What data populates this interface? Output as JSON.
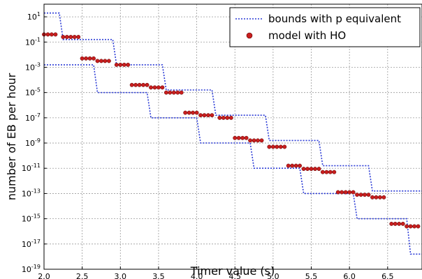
{
  "chart_data": {
    "type": "line",
    "xlabel": "Timer value (s)",
    "ylabel": "number of EB per hour",
    "xlim": [
      2.0,
      6.95
    ],
    "ylim_log10": [
      -19,
      2
    ],
    "y_scale": "log",
    "grid": true,
    "legend_position": "top-right",
    "x_ticks": [
      "2.0",
      "2.5",
      "3.0",
      "3.5",
      "4.0",
      "4.5",
      "5.0",
      "5.5",
      "6.0",
      "6.5"
    ],
    "x_tick_values": [
      2.0,
      2.5,
      3.0,
      3.5,
      4.0,
      4.5,
      5.0,
      5.5,
      6.0,
      6.5
    ],
    "y_tick_base": "10",
    "y_tick_exponents": [
      "1",
      "-1",
      "-3",
      "-5",
      "-7",
      "-9",
      "-11",
      "-13",
      "-15",
      "-17",
      "-19"
    ],
    "series": [
      {
        "name": "bounds with p equivalent",
        "style": "dotted-line",
        "color": "#2b3bd6",
        "step_lines": [
          {
            "x": [
              2.0,
              2.2,
              2.25,
              2.9,
              2.95,
              3.55,
              3.6,
              4.2,
              4.25,
              4.9,
              4.95,
              5.6,
              5.65,
              6.25,
              6.3,
              6.95
            ],
            "log10_y": [
              1.3,
              1.3,
              -0.8,
              -0.8,
              -2.8,
              -2.8,
              -4.8,
              -4.8,
              -6.8,
              -6.8,
              -8.8,
              -8.8,
              -10.8,
              -10.8,
              -12.8,
              -12.8
            ]
          },
          {
            "x": [
              2.0,
              2.65,
              2.7,
              3.35,
              3.4,
              4.0,
              4.05,
              4.7,
              4.75,
              5.35,
              5.4,
              6.05,
              6.1,
              6.75,
              6.8,
              6.95
            ],
            "log10_y": [
              -2.8,
              -2.8,
              -5.0,
              -5.0,
              -7.0,
              -7.0,
              -9.0,
              -9.0,
              -11.0,
              -11.0,
              -13.0,
              -13.0,
              -15.0,
              -15.0,
              -17.8,
              -17.8
            ]
          }
        ]
      },
      {
        "name": "model with HO",
        "style": "markers",
        "color": "#c81e1e",
        "points": [
          {
            "x": 2.0,
            "log10_y": -0.4
          },
          {
            "x": 2.05,
            "log10_y": -0.4
          },
          {
            "x": 2.1,
            "log10_y": -0.4
          },
          {
            "x": 2.15,
            "log10_y": -0.4
          },
          {
            "x": 2.25,
            "log10_y": -0.6
          },
          {
            "x": 2.3,
            "log10_y": -0.6
          },
          {
            "x": 2.35,
            "log10_y": -0.6
          },
          {
            "x": 2.4,
            "log10_y": -0.6
          },
          {
            "x": 2.45,
            "log10_y": -0.6
          },
          {
            "x": 2.5,
            "log10_y": -2.3
          },
          {
            "x": 2.55,
            "log10_y": -2.3
          },
          {
            "x": 2.6,
            "log10_y": -2.3
          },
          {
            "x": 2.65,
            "log10_y": -2.3
          },
          {
            "x": 2.7,
            "log10_y": -2.5
          },
          {
            "x": 2.75,
            "log10_y": -2.5
          },
          {
            "x": 2.8,
            "log10_y": -2.5
          },
          {
            "x": 2.85,
            "log10_y": -2.5
          },
          {
            "x": 2.95,
            "log10_y": -2.8
          },
          {
            "x": 3.0,
            "log10_y": -2.8
          },
          {
            "x": 3.05,
            "log10_y": -2.8
          },
          {
            "x": 3.1,
            "log10_y": -2.8
          },
          {
            "x": 3.15,
            "log10_y": -4.4
          },
          {
            "x": 3.2,
            "log10_y": -4.4
          },
          {
            "x": 3.25,
            "log10_y": -4.4
          },
          {
            "x": 3.3,
            "log10_y": -4.4
          },
          {
            "x": 3.35,
            "log10_y": -4.4
          },
          {
            "x": 3.4,
            "log10_y": -4.6
          },
          {
            "x": 3.45,
            "log10_y": -4.6
          },
          {
            "x": 3.5,
            "log10_y": -4.6
          },
          {
            "x": 3.55,
            "log10_y": -4.6
          },
          {
            "x": 3.6,
            "log10_y": -5.0
          },
          {
            "x": 3.65,
            "log10_y": -5.0
          },
          {
            "x": 3.7,
            "log10_y": -5.0
          },
          {
            "x": 3.75,
            "log10_y": -5.0
          },
          {
            "x": 3.8,
            "log10_y": -5.0
          },
          {
            "x": 3.85,
            "log10_y": -6.6
          },
          {
            "x": 3.9,
            "log10_y": -6.6
          },
          {
            "x": 3.95,
            "log10_y": -6.6
          },
          {
            "x": 4.0,
            "log10_y": -6.6
          },
          {
            "x": 4.05,
            "log10_y": -6.8
          },
          {
            "x": 4.1,
            "log10_y": -6.8
          },
          {
            "x": 4.15,
            "log10_y": -6.8
          },
          {
            "x": 4.2,
            "log10_y": -6.8
          },
          {
            "x": 4.3,
            "log10_y": -7.0
          },
          {
            "x": 4.35,
            "log10_y": -7.0
          },
          {
            "x": 4.4,
            "log10_y": -7.0
          },
          {
            "x": 4.45,
            "log10_y": -7.0
          },
          {
            "x": 4.5,
            "log10_y": -8.6
          },
          {
            "x": 4.55,
            "log10_y": -8.6
          },
          {
            "x": 4.6,
            "log10_y": -8.6
          },
          {
            "x": 4.65,
            "log10_y": -8.6
          },
          {
            "x": 4.7,
            "log10_y": -8.8
          },
          {
            "x": 4.75,
            "log10_y": -8.8
          },
          {
            "x": 4.8,
            "log10_y": -8.8
          },
          {
            "x": 4.85,
            "log10_y": -8.8
          },
          {
            "x": 4.95,
            "log10_y": -9.3
          },
          {
            "x": 5.0,
            "log10_y": -9.3
          },
          {
            "x": 5.05,
            "log10_y": -9.3
          },
          {
            "x": 5.1,
            "log10_y": -9.3
          },
          {
            "x": 5.15,
            "log10_y": -9.3
          },
          {
            "x": 5.2,
            "log10_y": -10.8
          },
          {
            "x": 5.25,
            "log10_y": -10.8
          },
          {
            "x": 5.3,
            "log10_y": -10.8
          },
          {
            "x": 5.35,
            "log10_y": -10.8
          },
          {
            "x": 5.4,
            "log10_y": -11.05
          },
          {
            "x": 5.45,
            "log10_y": -11.05
          },
          {
            "x": 5.5,
            "log10_y": -11.05
          },
          {
            "x": 5.55,
            "log10_y": -11.05
          },
          {
            "x": 5.6,
            "log10_y": -11.05
          },
          {
            "x": 5.65,
            "log10_y": -11.3
          },
          {
            "x": 5.7,
            "log10_y": -11.3
          },
          {
            "x": 5.75,
            "log10_y": -11.3
          },
          {
            "x": 5.8,
            "log10_y": -11.3
          },
          {
            "x": 5.85,
            "log10_y": -12.9
          },
          {
            "x": 5.9,
            "log10_y": -12.9
          },
          {
            "x": 5.95,
            "log10_y": -12.9
          },
          {
            "x": 6.0,
            "log10_y": -12.9
          },
          {
            "x": 6.05,
            "log10_y": -12.9
          },
          {
            "x": 6.1,
            "log10_y": -13.1
          },
          {
            "x": 6.15,
            "log10_y": -13.1
          },
          {
            "x": 6.2,
            "log10_y": -13.1
          },
          {
            "x": 6.25,
            "log10_y": -13.1
          },
          {
            "x": 6.3,
            "log10_y": -13.3
          },
          {
            "x": 6.35,
            "log10_y": -13.3
          },
          {
            "x": 6.4,
            "log10_y": -13.3
          },
          {
            "x": 6.45,
            "log10_y": -13.3
          },
          {
            "x": 6.55,
            "log10_y": -15.4
          },
          {
            "x": 6.6,
            "log10_y": -15.4
          },
          {
            "x": 6.65,
            "log10_y": -15.4
          },
          {
            "x": 6.7,
            "log10_y": -15.4
          },
          {
            "x": 6.75,
            "log10_y": -15.6
          },
          {
            "x": 6.8,
            "log10_y": -15.6
          },
          {
            "x": 6.85,
            "log10_y": -15.6
          },
          {
            "x": 6.9,
            "log10_y": -15.6
          }
        ]
      }
    ]
  }
}
